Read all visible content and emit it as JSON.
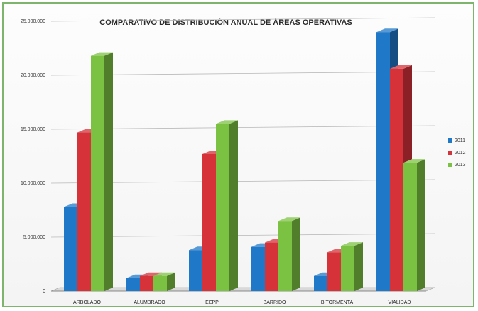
{
  "chart_data": {
    "type": "bar",
    "title": "COMPARATIVO DE DISTRIBUCIÓN  ANUAL DE ÁREAS OPERATIVAS",
    "categories": [
      "ARBOLADO",
      "ALUMBRADO",
      "EEPP",
      "BARRIDO",
      "B.TORMENTA",
      "VIALIDAD"
    ],
    "series": [
      {
        "name": "2011",
        "color": "#1f78c8",
        "values": [
          7800000,
          1200000,
          3800000,
          4100000,
          1400000,
          24000000
        ]
      },
      {
        "name": "2012",
        "color": "#d6323a",
        "values": [
          14700000,
          1400000,
          12700000,
          4500000,
          3600000,
          20600000
        ]
      },
      {
        "name": "2013",
        "color": "#7cc242",
        "values": [
          21800000,
          1400000,
          15500000,
          6500000,
          4200000,
          11900000
        ]
      }
    ],
    "ylim": [
      0,
      25000000
    ],
    "yticks": [
      0,
      5000000,
      10000000,
      15000000,
      20000000,
      25000000
    ],
    "ytick_labels": [
      "0",
      "5.000.000",
      "10.000.000",
      "15.000.000",
      "20.000.000",
      "25.000.000"
    ],
    "grid": true,
    "legend": "right"
  }
}
